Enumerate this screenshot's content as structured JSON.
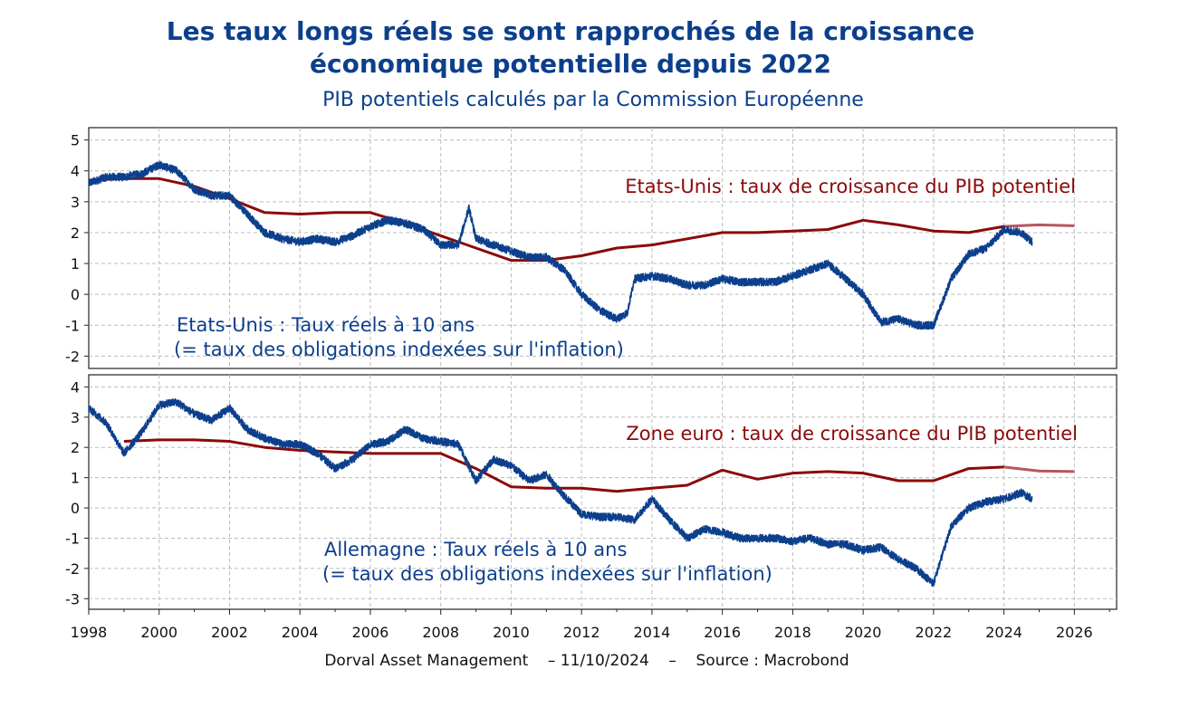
{
  "title_line1": "Les taux longs réels se sont rapprochés de la croissance",
  "title_line2": "économique potentielle depuis 2022",
  "subtitle": "PIB potentiels calculés par la Commission Européenne",
  "footer": "Dorval Asset Management    – 11/10/2024    –    Source : Macrobond",
  "colors": {
    "potential": "#8b0a0a",
    "potential_forecast": "#b8575a",
    "real_rate": "#0c3f8c",
    "grid": "#bcbcbc"
  },
  "chart_data": [
    {
      "type": "line",
      "xlim": [
        1998,
        2027.2
      ],
      "x_ticks": [
        1998,
        2000,
        2002,
        2004,
        2006,
        2008,
        2010,
        2012,
        2014,
        2016,
        2018,
        2020,
        2022,
        2024,
        2026
      ],
      "ylim": [
        -2.4,
        5.4
      ],
      "y_ticks": [
        -2,
        -1,
        0,
        1,
        2,
        3,
        4,
        5
      ],
      "grid": true,
      "annotations": [
        "Etats-Unis : taux de croissance du PIB potentiel",
        "Etats-Unis : Taux réels à 10 ans",
        "(= taux des obligations indexées sur l'inflation)"
      ],
      "series": [
        {
          "name": "Etats-Unis : taux de croissance du PIB potentiel",
          "x": [
            1998,
            1999,
            2000,
            2001,
            2002,
            2003,
            2004,
            2005,
            2006,
            2007,
            2008,
            2009,
            2010,
            2011,
            2012,
            2013,
            2014,
            2015,
            2016,
            2017,
            2018,
            2019,
            2020,
            2021,
            2022,
            2023,
            2024
          ],
          "y": [
            3.7,
            3.75,
            3.75,
            3.5,
            3.1,
            2.65,
            2.6,
            2.65,
            2.65,
            2.3,
            1.9,
            1.5,
            1.1,
            1.1,
            1.25,
            1.5,
            1.6,
            1.8,
            2.0,
            2.0,
            2.05,
            2.1,
            2.4,
            2.25,
            2.05,
            2.0,
            2.2
          ]
        },
        {
          "name": "Etats-Unis : taux de croissance du PIB potentiel (prévision)",
          "x": [
            2024,
            2025,
            2026
          ],
          "y": [
            2.2,
            2.25,
            2.22
          ]
        },
        {
          "name": "Etats-Unis : Taux réels à 10 ans",
          "x": [
            1998,
            1998.5,
            1999,
            1999.5,
            2000,
            2000.5,
            2001,
            2001.5,
            2002,
            2002.5,
            2003,
            2003.5,
            2004,
            2004.5,
            2005,
            2005.5,
            2006,
            2006.5,
            2007,
            2007.5,
            2008,
            2008.5,
            2008.8,
            2009,
            2009.5,
            2010,
            2010.5,
            2011,
            2011.5,
            2012,
            2012.5,
            2013,
            2013.3,
            2013.5,
            2014,
            2014.5,
            2015,
            2015.5,
            2016,
            2016.5,
            2017,
            2017.5,
            2018,
            2018.5,
            2019,
            2019.5,
            2020,
            2020.5,
            2021,
            2021.5,
            2022,
            2022.5,
            2023,
            2023.5,
            2024,
            2024.5,
            2024.8
          ],
          "y": [
            3.6,
            3.8,
            3.8,
            3.9,
            4.2,
            4.0,
            3.4,
            3.2,
            3.2,
            2.6,
            2.0,
            1.8,
            1.7,
            1.8,
            1.7,
            1.9,
            2.2,
            2.4,
            2.3,
            2.1,
            1.6,
            1.6,
            2.8,
            1.8,
            1.6,
            1.4,
            1.2,
            1.2,
            0.8,
            0.0,
            -0.5,
            -0.8,
            -0.6,
            0.5,
            0.6,
            0.5,
            0.3,
            0.3,
            0.5,
            0.4,
            0.4,
            0.4,
            0.6,
            0.8,
            1.0,
            0.5,
            0.0,
            -0.9,
            -0.8,
            -1.0,
            -1.0,
            0.5,
            1.3,
            1.5,
            2.1,
            2.0,
            1.7
          ]
        }
      ]
    },
    {
      "type": "line",
      "xlim": [
        1998,
        2027.2
      ],
      "x_ticks": [
        1998,
        2000,
        2002,
        2004,
        2006,
        2008,
        2010,
        2012,
        2014,
        2016,
        2018,
        2020,
        2022,
        2024,
        2026
      ],
      "ylim": [
        -3.35,
        4.4
      ],
      "y_ticks": [
        -3,
        -2,
        -1,
        0,
        1,
        2,
        3,
        4
      ],
      "grid": true,
      "annotations": [
        "Zone euro : taux de croissance du PIB potentiel",
        "Allemagne : Taux réels à 10 ans",
        "(= taux des obligations indexées sur l'inflation)"
      ],
      "series": [
        {
          "name": "Zone euro : taux de croissance du PIB potentiel",
          "x": [
            1999,
            2000,
            2001,
            2002,
            2003,
            2004,
            2005,
            2006,
            2007,
            2008,
            2009,
            2010,
            2011,
            2012,
            2013,
            2014,
            2015,
            2016,
            2017,
            2018,
            2019,
            2020,
            2021,
            2022,
            2023,
            2024
          ],
          "y": [
            2.2,
            2.25,
            2.25,
            2.2,
            2.0,
            1.9,
            1.85,
            1.8,
            1.8,
            1.8,
            1.3,
            0.7,
            0.65,
            0.65,
            0.55,
            0.65,
            0.75,
            1.25,
            0.95,
            1.15,
            1.2,
            1.15,
            0.9,
            0.9,
            1.3,
            1.35
          ]
        },
        {
          "name": "Zone euro : taux de croissance du PIB potentiel (prévision)",
          "x": [
            2024,
            2025,
            2026
          ],
          "y": [
            1.35,
            1.22,
            1.2
          ]
        },
        {
          "name": "Allemagne : Taux réels à 10 ans",
          "x": [
            1998,
            1998.5,
            1999,
            1999.5,
            2000,
            2000.5,
            2001,
            2001.5,
            2002,
            2002.5,
            2003,
            2003.5,
            2004,
            2004.5,
            2005,
            2005.5,
            2006,
            2006.5,
            2007,
            2007.5,
            2008,
            2008.5,
            2009,
            2009.5,
            2010,
            2010.5,
            2011,
            2011.5,
            2012,
            2012.5,
            2013,
            2013.5,
            2014,
            2014.5,
            2015,
            2015.5,
            2016,
            2016.5,
            2017,
            2017.5,
            2018,
            2018.5,
            2019,
            2019.5,
            2020,
            2020.5,
            2021,
            2021.5,
            2022,
            2022.5,
            2023,
            2023.5,
            2024,
            2024.5,
            2024.8
          ],
          "y": [
            3.3,
            2.8,
            1.8,
            2.5,
            3.4,
            3.5,
            3.1,
            2.9,
            3.3,
            2.6,
            2.3,
            2.1,
            2.1,
            1.8,
            1.3,
            1.6,
            2.1,
            2.2,
            2.6,
            2.3,
            2.2,
            2.1,
            0.9,
            1.6,
            1.4,
            0.9,
            1.1,
            0.4,
            -0.2,
            -0.3,
            -0.3,
            -0.4,
            0.3,
            -0.4,
            -1.0,
            -0.7,
            -0.8,
            -1.0,
            -1.0,
            -1.0,
            -1.1,
            -1.0,
            -1.2,
            -1.2,
            -1.4,
            -1.3,
            -1.7,
            -2.0,
            -2.5,
            -0.6,
            0.0,
            0.2,
            0.3,
            0.5,
            0.3
          ]
        }
      ]
    }
  ]
}
